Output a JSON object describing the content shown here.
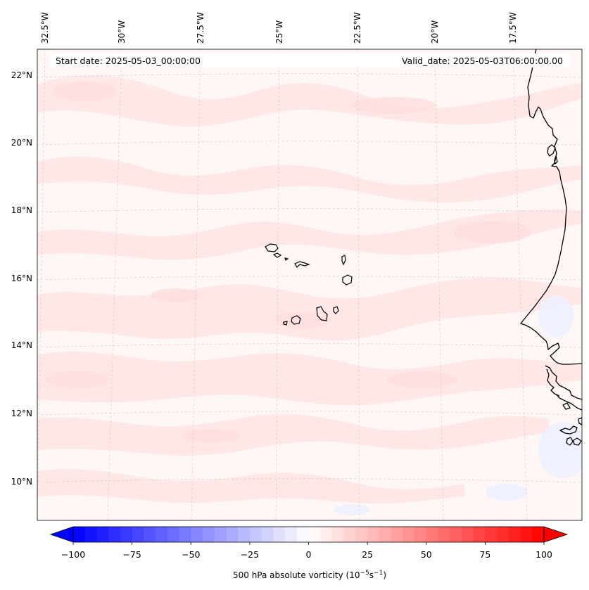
{
  "header": {
    "start_date": "Start date: 2025-05-03_00:00:00",
    "valid_date": "Valid_date: 2025-05-03T06:00:00.00"
  },
  "map": {
    "lon_labels": [
      "32.5°W",
      "30°W",
      "27.5°W",
      "25°W",
      "22.5°W",
      "20°W",
      "17.5°W"
    ],
    "lat_labels": [
      "22°N",
      "20°N",
      "18°N",
      "16°N",
      "14°N",
      "12°N",
      "10°N"
    ],
    "features": [
      "cape-verde-islands",
      "west-africa-coastline"
    ],
    "field_colors": {
      "background": "#fff6f6",
      "positive_band": "#ffe4e4",
      "negative_patch": "#f2f4ff",
      "coast": "#000000"
    }
  },
  "colorbar": {
    "ticks": [
      "−100",
      "−75",
      "−50",
      "−25",
      "0",
      "25",
      "50",
      "75",
      "100"
    ],
    "label_main": "500 hPa absolute vorticity (10",
    "label_exp1": "−5",
    "label_mid": "s",
    "label_exp2": "−1",
    "label_end": ")",
    "min": -100,
    "max": 100,
    "levels": 41,
    "colormap": "bwr",
    "colors": {
      "negative": "#0000ff",
      "zero": "#ffffff",
      "positive": "#ff0000"
    }
  }
}
